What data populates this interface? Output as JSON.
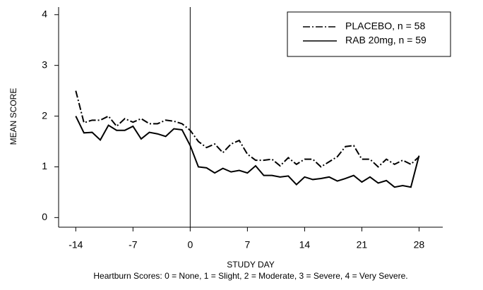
{
  "chart_data": {
    "type": "line",
    "x_label": "STUDY DAY",
    "y_label": "MEAN SCORE",
    "footnote": "Heartburn Scores: 0 = None, 1 = Slight, 2 = Moderate, 3 = Severe, 4 = Very Severe.",
    "x": [
      -14,
      -13,
      -12,
      -11,
      -10,
      -9,
      -8,
      -7,
      -6,
      -5,
      -4,
      -3,
      -2,
      -1,
      0,
      1,
      2,
      3,
      4,
      5,
      6,
      7,
      8,
      9,
      10,
      11,
      12,
      13,
      14,
      15,
      16,
      17,
      18,
      19,
      20,
      21,
      22,
      23,
      24,
      25,
      26,
      27,
      28
    ],
    "series": [
      {
        "name": "PLACEBO, n = 58",
        "color": "#000000",
        "style": "dashdot",
        "values": [
          2.5,
          1.87,
          1.92,
          1.92,
          2.0,
          1.8,
          1.95,
          1.88,
          1.95,
          1.85,
          1.85,
          1.92,
          1.9,
          1.85,
          1.72,
          1.5,
          1.38,
          1.45,
          1.28,
          1.45,
          1.52,
          1.25,
          1.13,
          1.13,
          1.15,
          1.02,
          1.18,
          1.05,
          1.15,
          1.15,
          1.0,
          1.1,
          1.2,
          1.4,
          1.42,
          1.15,
          1.15,
          1.0,
          1.15,
          1.05,
          1.13,
          1.05,
          1.2
        ]
      },
      {
        "name": "RAB 20mg, n = 59",
        "color": "#000000",
        "style": "solid",
        "values": [
          2.0,
          1.67,
          1.68,
          1.53,
          1.82,
          1.72,
          1.72,
          1.8,
          1.55,
          1.68,
          1.65,
          1.6,
          1.75,
          1.73,
          1.42,
          1.0,
          0.98,
          0.88,
          0.97,
          0.9,
          0.93,
          0.88,
          1.02,
          0.83,
          0.83,
          0.8,
          0.82,
          0.65,
          0.8,
          0.75,
          0.77,
          0.8,
          0.72,
          0.77,
          0.83,
          0.7,
          0.8,
          0.68,
          0.73,
          0.6,
          0.63,
          0.6,
          1.22
        ]
      }
    ],
    "xlim": [
      -16.1,
      30.9
    ],
    "xticks": [
      -14,
      -7,
      0,
      7,
      14,
      21,
      28
    ],
    "ylim": [
      -0.19,
      4.15
    ],
    "yticks": [
      0,
      1,
      2,
      3,
      4
    ],
    "reference_line_x": 0,
    "legend": "upper right",
    "grid": false
  }
}
